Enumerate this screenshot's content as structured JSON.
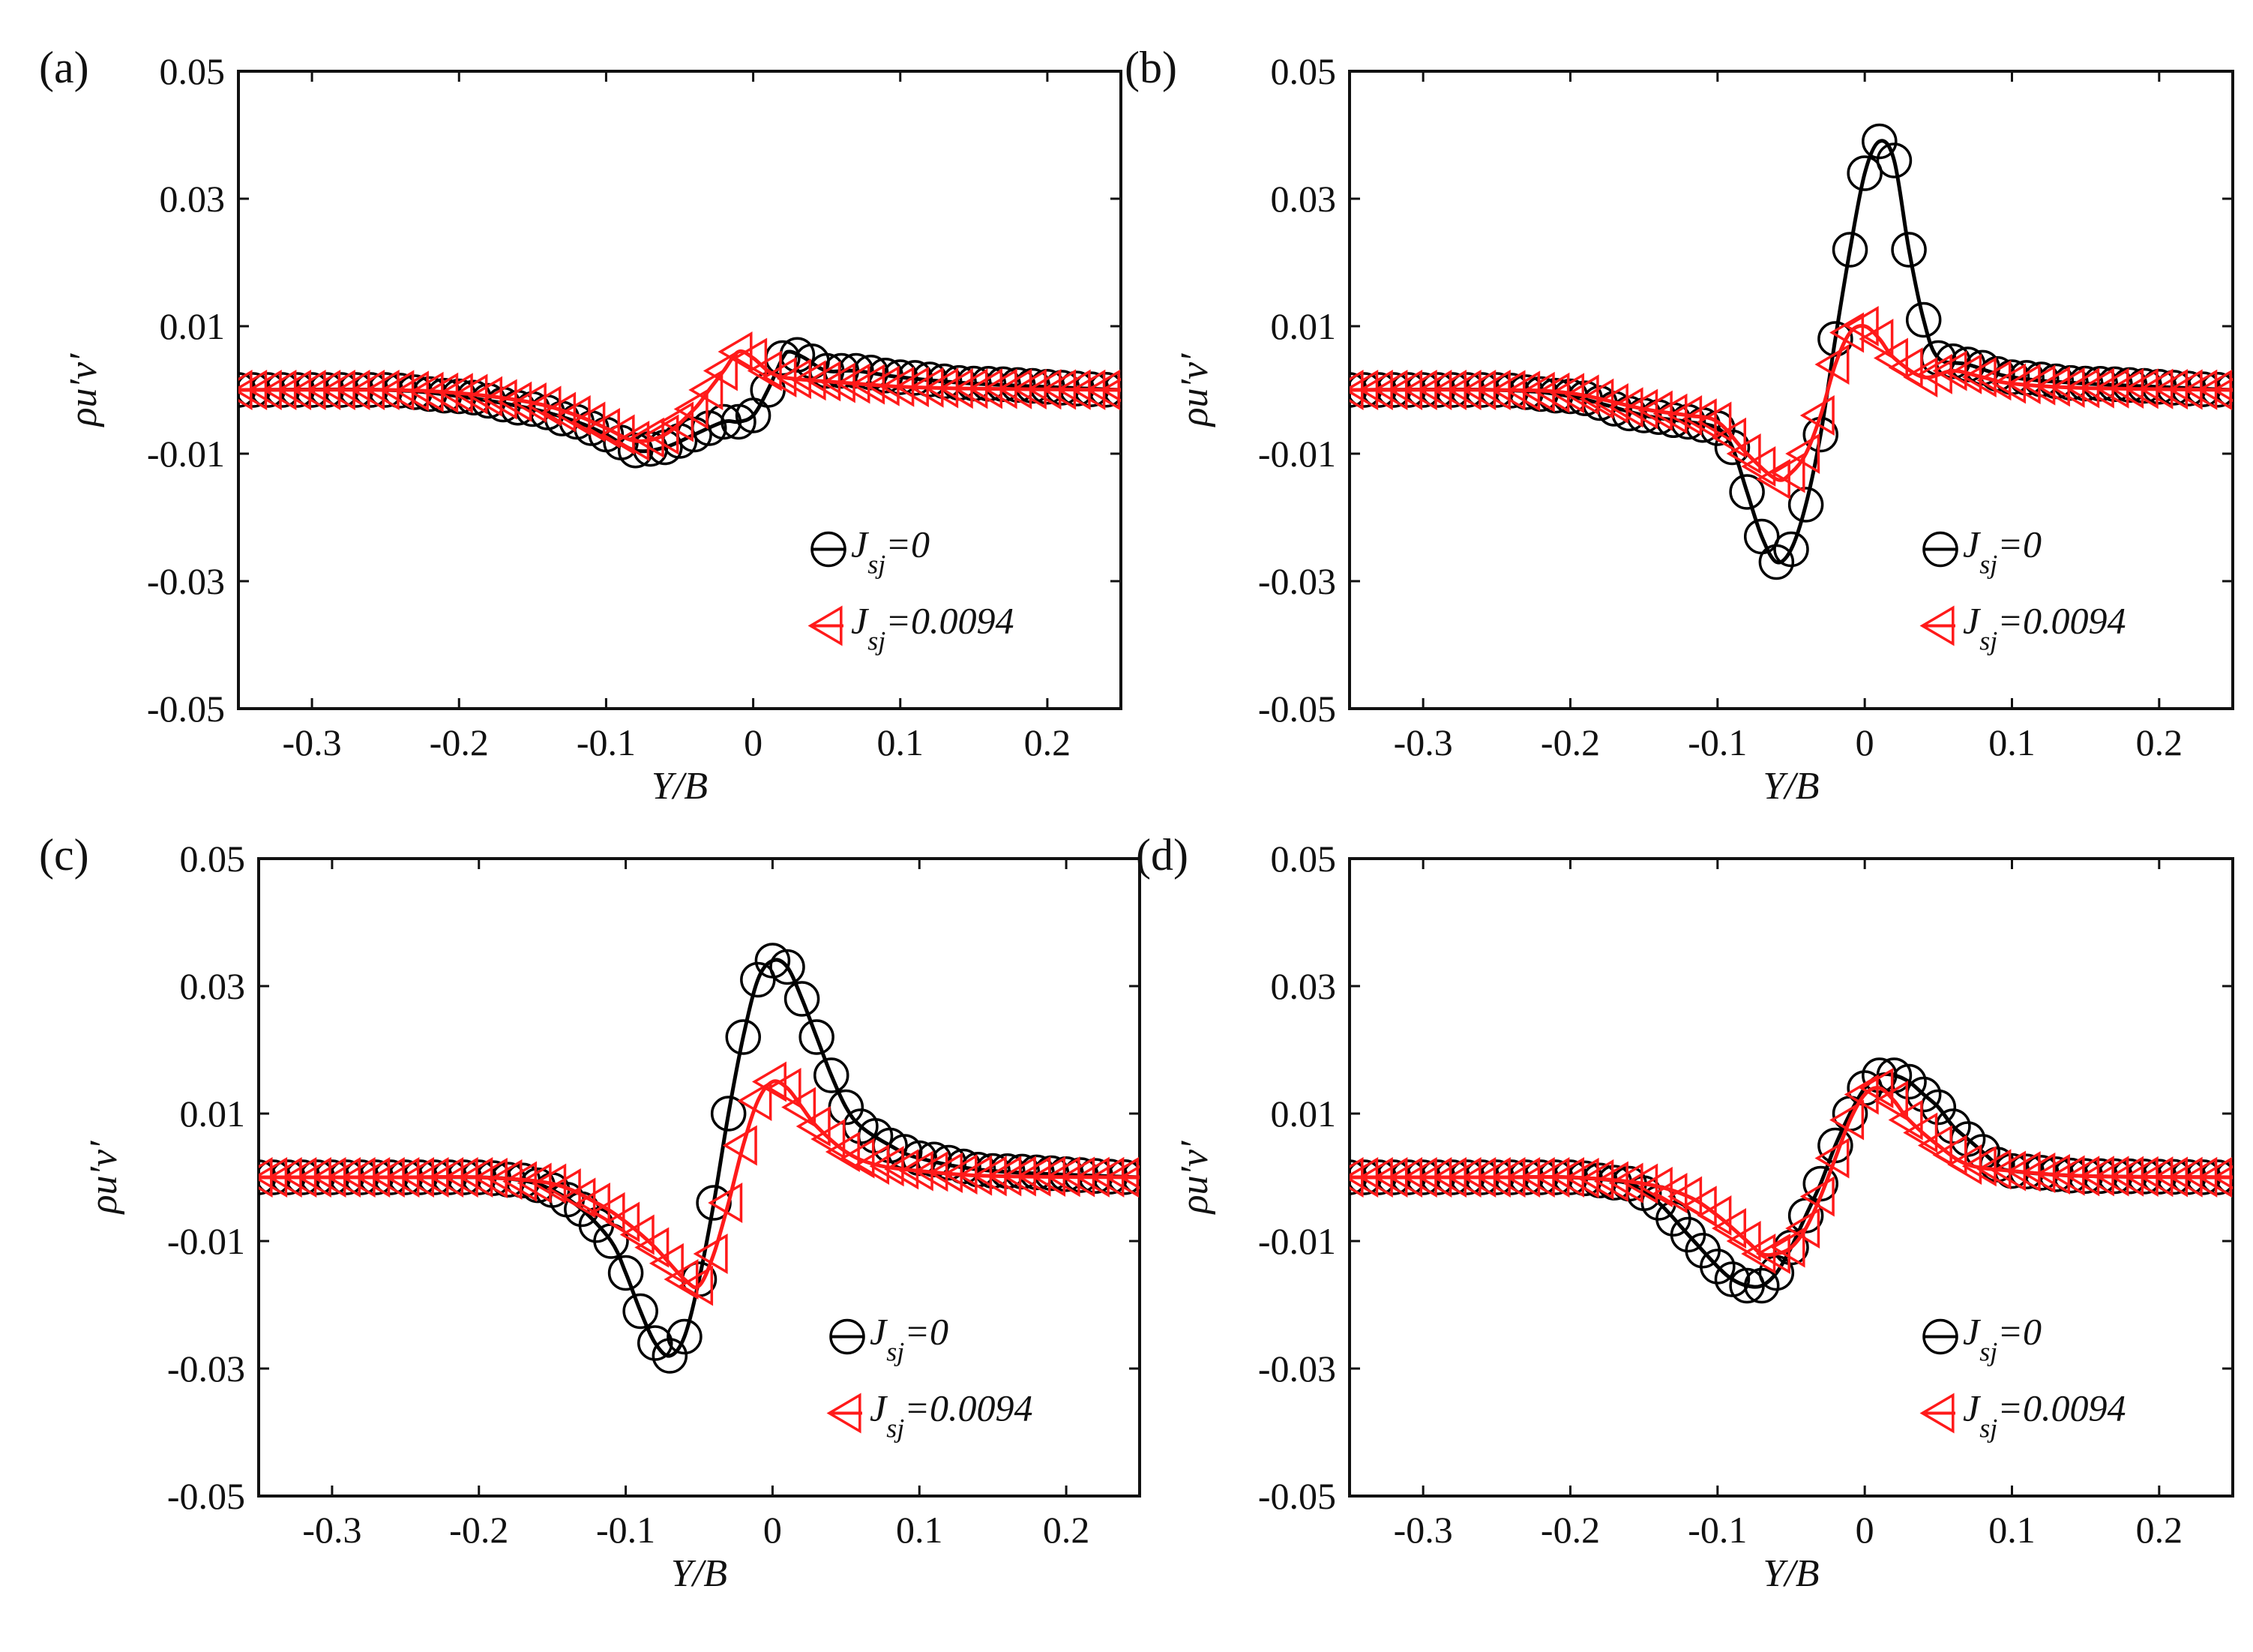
{
  "figure": {
    "panels_note": "four panels (a)-(d)"
  },
  "colors": {
    "black_series": "#000000",
    "red_series": "#ff1a1a"
  },
  "chart_data": [
    {
      "type": "line",
      "panel_label": "(a)",
      "xlabel": "Y/B",
      "ylabel": "ρu′v′",
      "xlim": [
        -0.35,
        0.25
      ],
      "ylim": [
        -0.05,
        0.05
      ],
      "xticks": [
        -0.3,
        -0.2,
        -0.1,
        0,
        0.1,
        0.2
      ],
      "xtick_labels": [
        "-0.3",
        "-0.2",
        "-0.1",
        "0",
        "0.1",
        "0.2"
      ],
      "yticks": [
        -0.05,
        -0.03,
        -0.01,
        0.01,
        0.03,
        0.05
      ],
      "ytick_labels": [
        "-0.05",
        "-0.03",
        "-0.01",
        "0.01",
        "0.03",
        "0.05"
      ],
      "legend": "lower-right",
      "series": [
        {
          "name": "J_sj=0",
          "legend_main": "J",
          "legend_sub": "sj",
          "legend_tail": "=0",
          "marker": "circle",
          "color": "#000000",
          "x": [
            -0.35,
            -0.25,
            -0.2,
            -0.15,
            -0.12,
            -0.1,
            -0.08,
            -0.06,
            -0.04,
            -0.02,
            -0.01,
            0.0,
            0.01,
            0.02,
            0.025,
            0.035,
            0.05,
            0.07,
            0.1,
            0.15,
            0.25
          ],
          "y": [
            0,
            0,
            -0.001,
            -0.003,
            -0.005,
            -0.007,
            -0.0095,
            -0.009,
            -0.007,
            -0.005,
            -0.005,
            -0.004,
            0.0,
            0.005,
            0.006,
            0.005,
            0.003,
            0.003,
            0.002,
            0.001,
            0
          ]
        },
        {
          "name": "J_sj=0.0094",
          "legend_main": "J",
          "legend_sub": "sj",
          "legend_tail": "=0.0094",
          "marker": "triangle-left",
          "color": "#ff1a1a",
          "x": [
            -0.35,
            -0.25,
            -0.2,
            -0.15,
            -0.12,
            -0.1,
            -0.08,
            -0.06,
            -0.04,
            -0.03,
            -0.02,
            -0.01,
            0.0,
            0.01,
            0.02,
            0.04,
            0.07,
            0.1,
            0.15,
            0.25
          ],
          "y": [
            0,
            0,
            -0.0005,
            -0.002,
            -0.004,
            -0.006,
            -0.008,
            -0.007,
            -0.003,
            0.0,
            0.003,
            0.006,
            0.005,
            0.003,
            0.002,
            0.0015,
            0.001,
            0.0005,
            0.0002,
            0
          ]
        }
      ]
    },
    {
      "type": "line",
      "panel_label": "(b)",
      "xlabel": "Y/B",
      "ylabel": "ρu′v′",
      "xlim": [
        -0.35,
        0.25
      ],
      "ylim": [
        -0.05,
        0.05
      ],
      "xticks": [
        -0.3,
        -0.2,
        -0.1,
        0,
        0.1,
        0.2
      ],
      "xtick_labels": [
        "-0.3",
        "-0.2",
        "-0.1",
        "0",
        "0.1",
        "0.2"
      ],
      "yticks": [
        -0.05,
        -0.03,
        -0.01,
        0.01,
        0.03,
        0.05
      ],
      "ytick_labels": [
        "-0.05",
        "-0.03",
        "-0.01",
        "0.01",
        "0.03",
        "0.05"
      ],
      "legend": "lower-right",
      "series": [
        {
          "name": "J_sj=0",
          "legend_main": "J",
          "legend_sub": "sj",
          "legend_tail": "=0",
          "marker": "circle",
          "color": "#000000",
          "x": [
            -0.35,
            -0.25,
            -0.2,
            -0.15,
            -0.12,
            -0.1,
            -0.09,
            -0.08,
            -0.07,
            -0.06,
            -0.05,
            -0.04,
            -0.03,
            -0.02,
            -0.01,
            0.0,
            0.01,
            0.02,
            0.03,
            0.04,
            0.05,
            0.07,
            0.1,
            0.15,
            0.25
          ],
          "y": [
            0,
            0,
            -0.001,
            -0.004,
            -0.005,
            -0.006,
            -0.009,
            -0.016,
            -0.023,
            -0.027,
            -0.025,
            -0.018,
            -0.007,
            0.008,
            0.022,
            0.034,
            0.039,
            0.036,
            0.022,
            0.011,
            0.005,
            0.004,
            0.002,
            0.001,
            0
          ]
        },
        {
          "name": "J_sj=0.0094",
          "legend_main": "J",
          "legend_sub": "sj",
          "legend_tail": "=0.0094",
          "marker": "triangle-left",
          "color": "#ff1a1a",
          "x": [
            -0.35,
            -0.25,
            -0.2,
            -0.15,
            -0.12,
            -0.1,
            -0.08,
            -0.06,
            -0.05,
            -0.04,
            -0.03,
            -0.02,
            -0.01,
            0.0,
            0.01,
            0.02,
            0.04,
            0.06,
            0.08,
            0.1,
            0.15,
            0.25
          ],
          "y": [
            0,
            0,
            -0.0005,
            -0.003,
            -0.004,
            -0.005,
            -0.01,
            -0.014,
            -0.013,
            -0.01,
            -0.004,
            0.004,
            0.009,
            0.01,
            0.008,
            0.005,
            0.002,
            0.003,
            0.002,
            0.001,
            0.0003,
            0
          ]
        }
      ]
    },
    {
      "type": "line",
      "panel_label": "(c)",
      "xlabel": "Y/B",
      "ylabel": "ρu′v′",
      "xlim": [
        -0.35,
        0.25
      ],
      "ylim": [
        -0.05,
        0.05
      ],
      "xticks": [
        -0.3,
        -0.2,
        -0.1,
        0,
        0.1,
        0.2
      ],
      "xtick_labels": [
        "-0.3",
        "-0.2",
        "-0.1",
        "0",
        "0.1",
        "0.2"
      ],
      "yticks": [
        -0.05,
        -0.03,
        -0.01,
        0.01,
        0.03,
        0.05
      ],
      "ytick_labels": [
        "-0.05",
        "-0.03",
        "-0.01",
        "0.01",
        "0.03",
        "0.05"
      ],
      "legend": "lower-right",
      "series": [
        {
          "name": "J_sj=0",
          "legend_main": "J",
          "legend_sub": "sj",
          "legend_tail": "=0",
          "marker": "circle",
          "color": "#000000",
          "x": [
            -0.35,
            -0.25,
            -0.2,
            -0.17,
            -0.15,
            -0.13,
            -0.11,
            -0.1,
            -0.09,
            -0.08,
            -0.07,
            -0.06,
            -0.05,
            -0.04,
            -0.03,
            -0.02,
            -0.01,
            0.0,
            0.01,
            0.02,
            0.03,
            0.04,
            0.05,
            0.06,
            0.08,
            0.1,
            0.15,
            0.25
          ],
          "y": [
            0,
            0,
            0,
            -0.0005,
            -0.002,
            -0.005,
            -0.01,
            -0.015,
            -0.021,
            -0.026,
            -0.028,
            -0.025,
            -0.016,
            -0.004,
            0.01,
            0.022,
            0.031,
            0.034,
            0.033,
            0.028,
            0.022,
            0.016,
            0.011,
            0.008,
            0.005,
            0.003,
            0.001,
            0
          ]
        },
        {
          "name": "J_sj=0.0094",
          "legend_main": "J",
          "legend_sub": "sj",
          "legend_tail": "=0.0094",
          "marker": "triangle-left",
          "color": "#ff1a1a",
          "x": [
            -0.35,
            -0.25,
            -0.2,
            -0.15,
            -0.12,
            -0.1,
            -0.08,
            -0.06,
            -0.05,
            -0.04,
            -0.03,
            -0.02,
            -0.01,
            0.0,
            0.01,
            0.02,
            0.03,
            0.05,
            0.07,
            0.1,
            0.15,
            0.25
          ],
          "y": [
            0,
            0,
            0,
            -0.001,
            -0.004,
            -0.007,
            -0.011,
            -0.016,
            -0.017,
            -0.012,
            -0.004,
            0.005,
            0.012,
            0.015,
            0.014,
            0.011,
            0.008,
            0.004,
            0.002,
            0.001,
            0.0002,
            0
          ]
        }
      ]
    },
    {
      "type": "line",
      "panel_label": "(d)",
      "xlabel": "Y/B",
      "ylabel": "ρu′v′",
      "xlim": [
        -0.35,
        0.25
      ],
      "ylim": [
        -0.05,
        0.05
      ],
      "xticks": [
        -0.3,
        -0.2,
        -0.1,
        0,
        0.1,
        0.2
      ],
      "xtick_labels": [
        "-0.3",
        "-0.2",
        "-0.1",
        "0",
        "0.1",
        "0.2"
      ],
      "yticks": [
        -0.05,
        -0.03,
        -0.01,
        0.01,
        0.03,
        0.05
      ],
      "ytick_labels": [
        "-0.05",
        "-0.03",
        "-0.01",
        "0.01",
        "0.03",
        "0.05"
      ],
      "legend": "lower-right",
      "series": [
        {
          "name": "J_sj=0",
          "legend_main": "J",
          "legend_sub": "sj",
          "legend_tail": "=0",
          "marker": "circle",
          "color": "#000000",
          "x": [
            -0.35,
            -0.25,
            -0.2,
            -0.16,
            -0.14,
            -0.12,
            -0.1,
            -0.09,
            -0.08,
            -0.07,
            -0.06,
            -0.05,
            -0.04,
            -0.03,
            -0.02,
            -0.01,
            0.0,
            0.01,
            0.02,
            0.03,
            0.04,
            0.05,
            0.06,
            0.07,
            0.08,
            0.09,
            0.1,
            0.15,
            0.25
          ],
          "y": [
            0,
            0,
            0,
            -0.001,
            -0.004,
            -0.009,
            -0.014,
            -0.016,
            -0.017,
            -0.017,
            -0.015,
            -0.011,
            -0.006,
            -0.001,
            0.005,
            0.01,
            0.014,
            0.016,
            0.016,
            0.015,
            0.013,
            0.011,
            0.008,
            0.006,
            0.004,
            0.002,
            0.001,
            0.0002,
            0
          ]
        },
        {
          "name": "J_sj=0.0094",
          "legend_main": "J",
          "legend_sub": "sj",
          "legend_tail": "=0.0094",
          "marker": "triangle-left",
          "color": "#ff1a1a",
          "x": [
            -0.35,
            -0.25,
            -0.2,
            -0.15,
            -0.12,
            -0.1,
            -0.08,
            -0.07,
            -0.06,
            -0.05,
            -0.04,
            -0.03,
            -0.02,
            -0.01,
            0.0,
            0.01,
            0.02,
            0.03,
            0.05,
            0.07,
            0.1,
            0.15,
            0.25
          ],
          "y": [
            0,
            0,
            0,
            -0.001,
            -0.003,
            -0.006,
            -0.01,
            -0.012,
            -0.012,
            -0.011,
            -0.008,
            -0.003,
            0.003,
            0.009,
            0.013,
            0.014,
            0.012,
            0.009,
            0.005,
            0.002,
            0.001,
            0.0002,
            0
          ]
        }
      ]
    }
  ]
}
